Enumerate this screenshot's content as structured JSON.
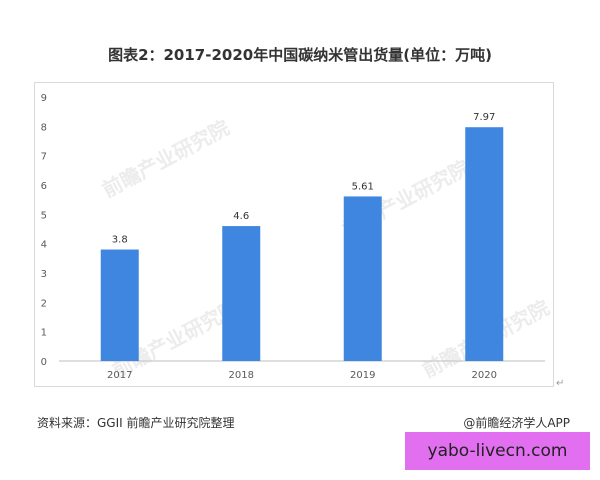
{
  "title": "图表2：2017-2020年中国碳纳米管出货量(单位：万吨)",
  "source": "资料来源：GGII 前瞻产业研究院整理",
  "credit": "@前瞻经济学人APP",
  "banner": "yabo-livecn.com",
  "watermark": "前瞻产业研究院",
  "colors": {
    "bar": "#3f86e0",
    "axis": "#bfbfbf",
    "text": "#595959"
  },
  "chart_data": {
    "type": "bar",
    "title": "图表2：2017-2020年中国碳纳米管出货量(单位：万吨)",
    "categories": [
      "2017",
      "2018",
      "2019",
      "2020"
    ],
    "values": [
      3.8,
      4.6,
      5.61,
      7.97
    ],
    "data_labels": [
      "3.8",
      "4.6",
      "5.61",
      "7.97"
    ],
    "ylim": [
      0,
      9
    ],
    "yticks": [
      "0",
      "1",
      "2",
      "3",
      "4",
      "5",
      "6",
      "7",
      "8",
      "9"
    ],
    "grid": false,
    "legend": "none"
  }
}
